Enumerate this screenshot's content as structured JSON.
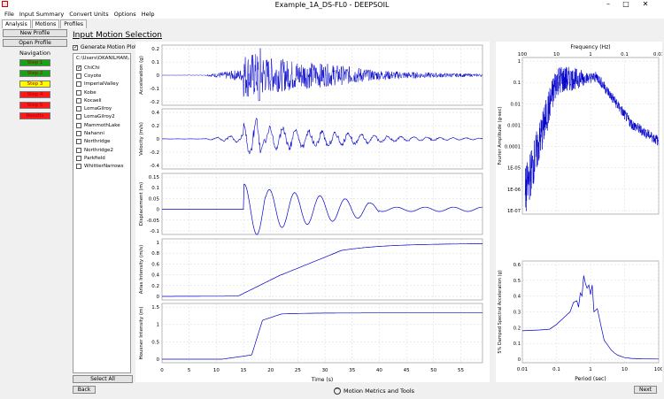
{
  "window": {
    "title": "Example_1A_DS-FL0 - DEEPSOIL",
    "minimize": "–",
    "maximize": "□",
    "close": "✕"
  },
  "menu": [
    "File",
    "Input Summary",
    "Convert Units",
    "Options",
    "Help"
  ],
  "tabs": [
    "Analysis",
    "Motions",
    "Profiles"
  ],
  "left": {
    "new_profile": "New Profile",
    "open_profile": "Open Profile",
    "navigation": "Navigation",
    "steps": [
      {
        "label": "Step 1",
        "color": "#17a317"
      },
      {
        "label": "Step 2",
        "color": "#17a317"
      },
      {
        "label": "Step 3",
        "color": "#ffff00"
      },
      {
        "label": "Step 4",
        "color": "#ff1a1a"
      },
      {
        "label": "Step 5",
        "color": "#ff1a1a"
      },
      {
        "label": "Results",
        "color": "#ff1a1a"
      }
    ]
  },
  "section_title": "Input Motion Selection",
  "generate_label": "Generate Motion Plots",
  "path": "C:\\Users\\OKANILHAN\\...",
  "motions": [
    {
      "name": "ChiChi",
      "checked": true
    },
    {
      "name": "Coyote",
      "checked": false
    },
    {
      "name": "ImperialValley",
      "checked": false
    },
    {
      "name": "Kobe",
      "checked": false
    },
    {
      "name": "Kocaeli",
      "checked": false
    },
    {
      "name": "LomaGilroy",
      "checked": false
    },
    {
      "name": "LomaGilroy2",
      "checked": false
    },
    {
      "name": "MammothLake",
      "checked": false
    },
    {
      "name": "Nahanni",
      "checked": false
    },
    {
      "name": "Northridge",
      "checked": false
    },
    {
      "name": "Northridge2",
      "checked": false
    },
    {
      "name": "Parkfield",
      "checked": false
    },
    {
      "name": "WhittierNarrows",
      "checked": false
    }
  ],
  "select_all": "Select All",
  "back": "Back",
  "next": "Next",
  "motion_metrics": "Motion Metrics and Tools",
  "time_plots": {
    "xlabel": "Time (s)",
    "xticks": [
      "0",
      "5",
      "10",
      "15",
      "20",
      "25",
      "30",
      "35",
      "40",
      "45",
      "50",
      "55"
    ],
    "panels": [
      {
        "ylabel": "Acceleration (g)",
        "yticks": [
          "0.2",
          "0.1",
          "0",
          "-0.1",
          "-0.2"
        ]
      },
      {
        "ylabel": "Velocity (m/s)",
        "yticks": [
          "0.4",
          "0.2",
          "0",
          "-0.2",
          "-0.4"
        ]
      },
      {
        "ylabel": "Displacement (m)",
        "yticks": [
          "0.15",
          "0.1",
          "0.05",
          "0",
          "-0.05",
          "-0.1"
        ]
      },
      {
        "ylabel": "Arias Intensity (m/s)",
        "yticks": [
          "1",
          "0.8",
          "0.6",
          "0.4",
          "0.2",
          "0"
        ]
      },
      {
        "ylabel": "Housner Intensity (m)",
        "yticks": [
          "1.5",
          "1",
          "0.5",
          "0"
        ]
      }
    ]
  },
  "fourier": {
    "top_label": "Frequency (Hz)",
    "top_ticks": [
      "100",
      "10",
      "1",
      "0.1",
      "0.01"
    ],
    "ylabel": "Fourier Amplitude (g-sec)",
    "yticks": [
      "1",
      "0.1",
      "0.01",
      "0.001",
      "0.0001",
      "1E-05",
      "1E-06",
      "1E-07"
    ]
  },
  "spectral": {
    "ylabel": "5% Damped Spectral Acceleration (g)",
    "yticks": [
      "0.6",
      "0.5",
      "0.4",
      "0.3",
      "0.2",
      "0.1",
      "0"
    ],
    "xlabel": "Period (sec)",
    "xticks": [
      "0.01",
      "0.1",
      "1",
      "10",
      "100"
    ]
  },
  "colors": {
    "trace": "#0000cc",
    "grid": "#d8d8d8"
  }
}
